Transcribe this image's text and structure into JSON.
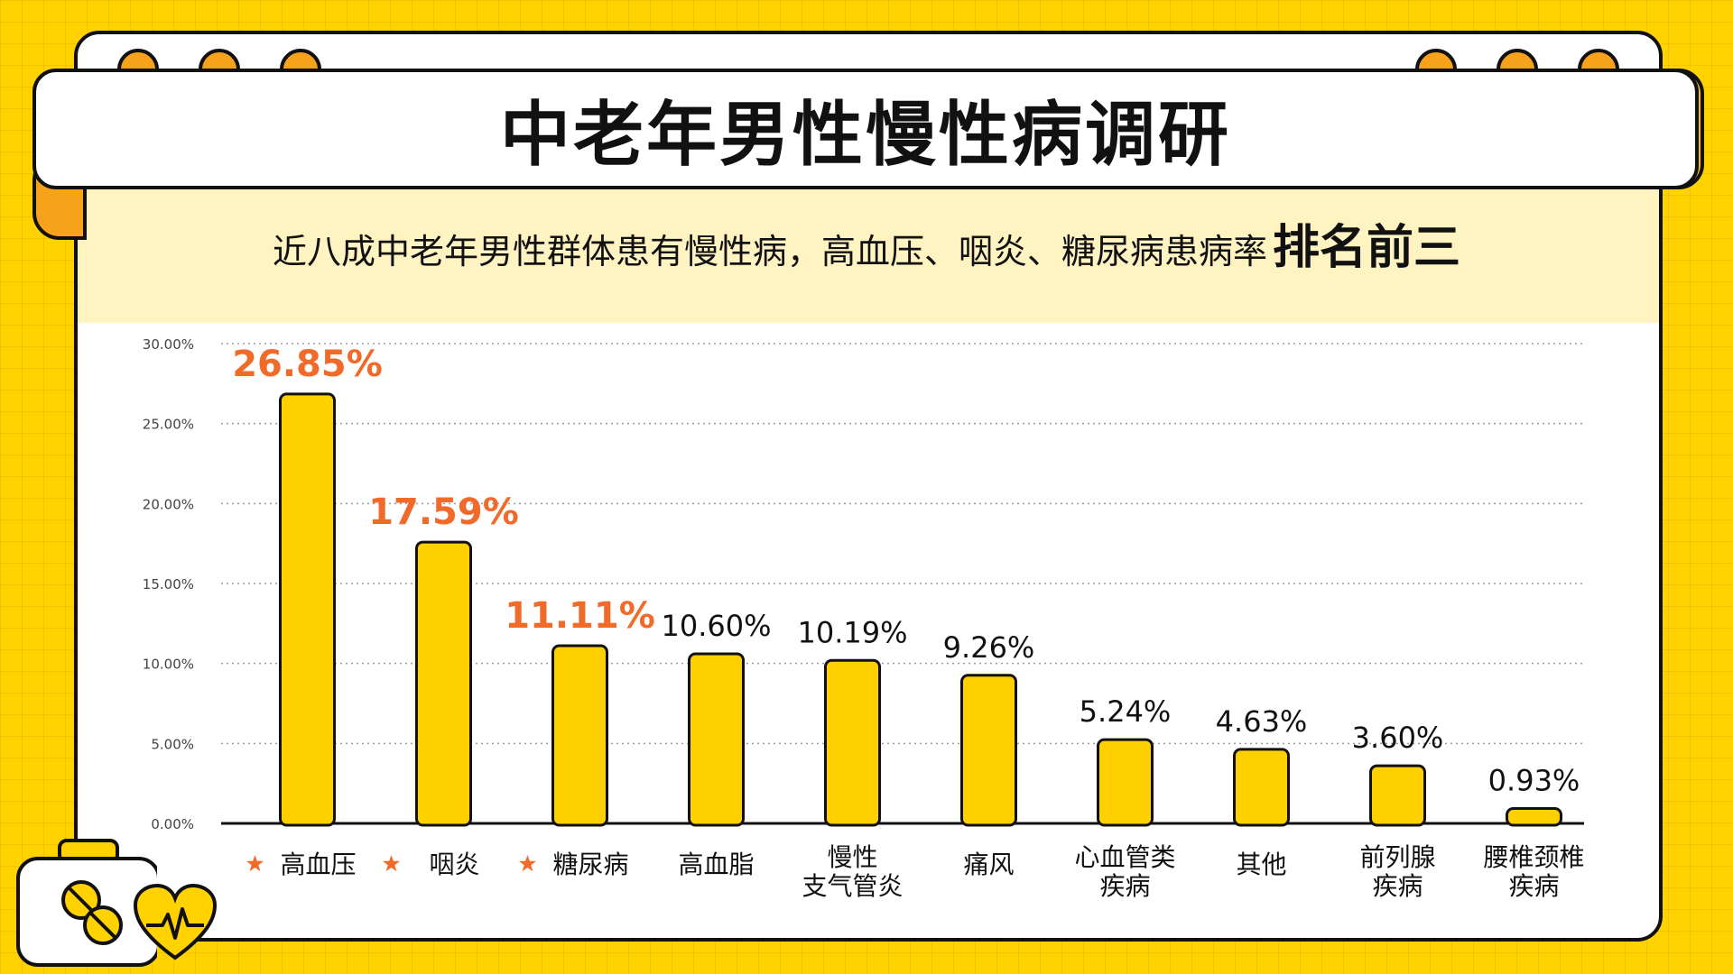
{
  "title": "中老年男性慢性病调研",
  "subtitle": {
    "text": "近八成中老年男性群体患有慢性病，高血压、咽炎、糖尿病患病率",
    "emphasis": "排名前三"
  },
  "colors": {
    "background": "#FFD200",
    "bar_fill": "#FFD000",
    "bar_stroke": "#111111",
    "highlight_label": "#F06A2A",
    "normal_label": "#111111",
    "star": "#F06A2A",
    "accent_orange": "#F7A21B"
  },
  "chart_data": {
    "type": "bar",
    "categories": [
      [
        "高血压"
      ],
      [
        "咽炎"
      ],
      [
        "糖尿病"
      ],
      [
        "高血脂"
      ],
      [
        "慢性",
        "支气管炎"
      ],
      [
        "痛风"
      ],
      [
        "心血管类",
        "疾病"
      ],
      [
        "其他"
      ],
      [
        "前列腺",
        "疾病"
      ],
      [
        "腰椎颈椎",
        "疾病"
      ]
    ],
    "values": [
      26.85,
      17.59,
      11.11,
      10.6,
      10.19,
      9.26,
      5.24,
      4.63,
      3.6,
      0.93
    ],
    "data_labels": [
      "26.85%",
      "17.59%",
      "11.11%",
      "10.60%",
      "10.19%",
      "9.26%",
      "5.24%",
      "4.63%",
      "3.60%",
      "0.93%"
    ],
    "highlighted": [
      true,
      true,
      true,
      false,
      false,
      false,
      false,
      false,
      false,
      false
    ],
    "starred": [
      true,
      true,
      true,
      false,
      false,
      false,
      false,
      false,
      false,
      false
    ],
    "y_ticks": [
      "0.00%",
      "5.00%",
      "10.00%",
      "15.00%",
      "20.00%",
      "25.00%",
      "30.00%"
    ],
    "ylim": [
      0,
      30
    ],
    "grid": true,
    "grid_style": "dotted"
  },
  "icons": {
    "medicine_box": "medicine-box-icon",
    "heart": "heart-pulse-icon",
    "star": "star-icon"
  }
}
